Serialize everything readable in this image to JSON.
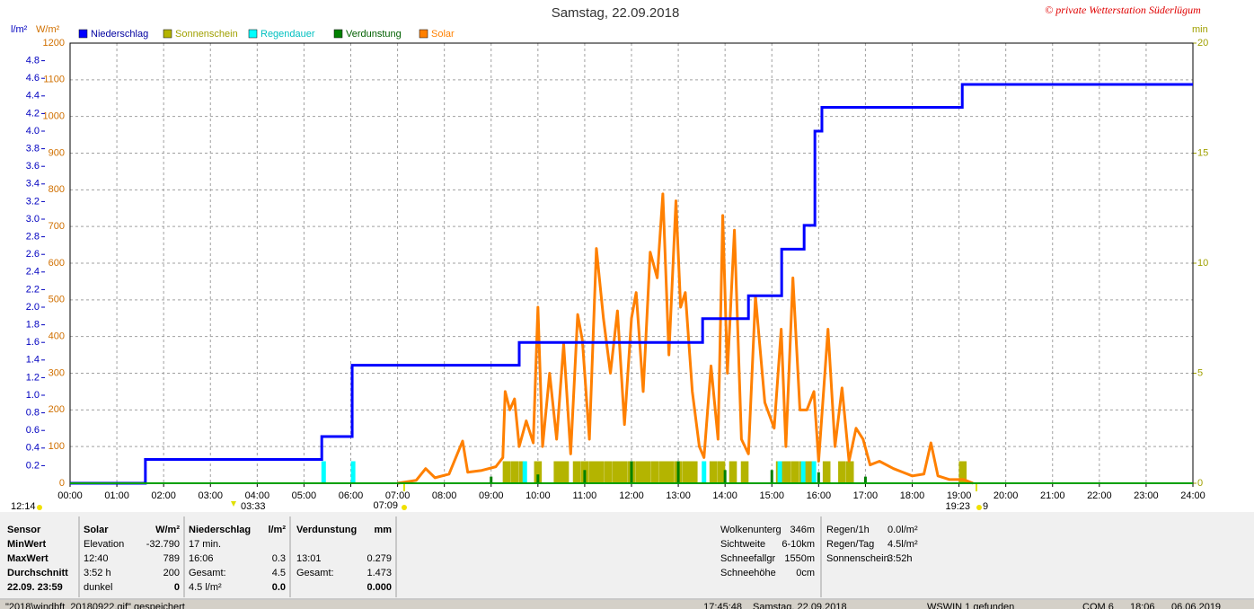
{
  "chart_data": {
    "type": "weather",
    "title": "Samstag, 22.09.2018",
    "copyright": "© private Wetterstation Süderlügum",
    "y_unit": "l/m²",
    "y3_unit": "W/m²",
    "y2_unit": "min",
    "xlim": [
      0,
      24
    ],
    "xticks": [
      {
        "value": 0,
        "label": "00:00"
      },
      {
        "value": 1,
        "label": "01:00"
      },
      {
        "value": 2,
        "label": "02:00"
      },
      {
        "value": 3,
        "label": "03:00"
      },
      {
        "value": 4,
        "label": "04:00"
      },
      {
        "value": 5,
        "label": "05:00"
      },
      {
        "value": 6,
        "label": "06:00"
      },
      {
        "value": 7,
        "label": "07:00"
      },
      {
        "value": 8,
        "label": "08:00"
      },
      {
        "value": 9,
        "label": "09:00"
      },
      {
        "value": 10,
        "label": "10:00"
      },
      {
        "value": 11,
        "label": "11:00"
      },
      {
        "value": 12,
        "label": "12:00"
      },
      {
        "value": 13,
        "label": "13:00"
      },
      {
        "value": 14,
        "label": "14:00"
      },
      {
        "value": 15,
        "label": "15:00"
      },
      {
        "value": 16,
        "label": "16:00"
      },
      {
        "value": 17,
        "label": "17:00"
      },
      {
        "value": 18,
        "label": "18:00"
      },
      {
        "value": 19,
        "label": "19:00"
      },
      {
        "value": 20,
        "label": "20:00"
      },
      {
        "value": 21,
        "label": "21:00"
      },
      {
        "value": 22,
        "label": "22:00"
      },
      {
        "value": 23,
        "label": "23:00"
      },
      {
        "value": 24,
        "label": "24:00"
      }
    ],
    "ylim": [
      0,
      5
    ],
    "yticks": [
      0.2,
      0.4,
      0.6,
      0.8,
      {
        "value": 1,
        "label": "1.0"
      },
      1.2,
      1.4,
      1.6,
      1.8,
      {
        "value": 2,
        "label": "2.0"
      },
      2.2,
      2.4,
      2.6,
      2.8,
      {
        "value": 3,
        "label": "3.0"
      },
      3.2,
      3.4,
      3.6,
      3.8,
      {
        "value": 4,
        "label": "4.0"
      },
      4.2,
      4.4,
      4.6,
      4.8
    ],
    "y3lim": [
      0,
      1200
    ],
    "y3ticks": [
      0,
      100,
      200,
      300,
      400,
      500,
      600,
      700,
      800,
      900,
      1000,
      1100,
      1200
    ],
    "y2lim": [
      0,
      20
    ],
    "y2ticks": [
      0,
      5,
      10,
      15,
      20
    ],
    "grid": true,
    "series": [
      {
        "name": "Niederschlag",
        "color": "#0000ff",
        "kind": "step",
        "axis": "y",
        "x": [
          0,
          1.61,
          5.38,
          6.03,
          9.6,
          13.52,
          14.5,
          15.21,
          15.69,
          15.92,
          16.07,
          19.07
        ],
        "values": [
          0,
          0.27,
          0.53,
          1.34,
          1.6,
          1.87,
          2.13,
          2.66,
          2.93,
          4.0,
          4.27,
          4.53
        ]
      },
      {
        "name": "Sonnenschein",
        "color": "#b4b400",
        "kind": "bar",
        "axis": "y2",
        "x": [
          9.33,
          9.5,
          9.67,
          10.0,
          10.42,
          10.58,
          10.83,
          11.0,
          11.17,
          11.33,
          11.5,
          11.67,
          11.83,
          12.0,
          12.17,
          12.33,
          12.5,
          12.67,
          12.83,
          13.0,
          13.17,
          13.33,
          13.75,
          13.92,
          14.17,
          14.42,
          15.17,
          15.33,
          15.5,
          15.67,
          15.83,
          16.17,
          16.5,
          16.67,
          19.08
        ],
        "values": [
          1,
          1,
          1,
          1,
          1,
          1,
          1,
          1,
          1,
          1,
          1,
          1,
          1,
          1,
          1,
          1,
          1,
          1,
          1,
          1,
          1,
          1,
          1,
          1,
          1,
          1,
          1,
          1,
          1,
          1,
          1,
          1,
          1,
          1,
          1
        ]
      },
      {
        "name": "Regendauer",
        "color": "#00ffff",
        "kind": "bar",
        "axis": "y2",
        "x": [
          5.42,
          6.05,
          9.72,
          13.55,
          15.17,
          15.67,
          15.9
        ],
        "values": [
          1,
          1,
          1,
          1,
          1,
          1,
          1
        ]
      },
      {
        "name": "Verdunstung",
        "color": "#008000",
        "kind": "thinbar",
        "axis": "y2",
        "x": [
          9.0,
          10.0,
          11.0,
          12.0,
          13.0,
          14.0,
          15.0,
          16.0,
          17.0
        ],
        "values": [
          0.3,
          0.4,
          0.6,
          1,
          1,
          0.6,
          0.6,
          0.5,
          0.3
        ]
      },
      {
        "name": "Solar",
        "color": "#ff8000",
        "kind": "line",
        "axis": "y3",
        "x": [
          7.0,
          7.4,
          7.6,
          7.8,
          8.1,
          8.39,
          8.5,
          8.8,
          9.1,
          9.25,
          9.3,
          9.4,
          9.5,
          9.6,
          9.75,
          9.9,
          10.0,
          10.1,
          10.25,
          10.4,
          10.55,
          10.7,
          10.85,
          10.95,
          11.1,
          11.25,
          11.4,
          11.55,
          11.7,
          11.85,
          12.0,
          12.1,
          12.25,
          12.4,
          12.55,
          12.67,
          12.8,
          12.95,
          13.05,
          13.15,
          13.3,
          13.45,
          13.55,
          13.7,
          13.85,
          13.95,
          14.05,
          14.2,
          14.35,
          14.5,
          14.65,
          14.85,
          15.05,
          15.2,
          15.3,
          15.45,
          15.6,
          15.75,
          15.9,
          16.0,
          16.2,
          16.35,
          16.5,
          16.65,
          16.8,
          16.95,
          17.1,
          17.3,
          17.6,
          17.8,
          18.0,
          18.25,
          18.4,
          18.55,
          18.8,
          19.1,
          19.3
        ],
        "values": [
          0,
          8,
          40,
          15,
          25,
          115,
          30,
          35,
          45,
          70,
          250,
          200,
          230,
          100,
          170,
          110,
          480,
          100,
          300,
          120,
          380,
          80,
          460,
          390,
          120,
          640,
          450,
          300,
          470,
          160,
          450,
          520,
          250,
          630,
          560,
          789,
          350,
          770,
          480,
          520,
          250,
          100,
          70,
          320,
          120,
          730,
          300,
          690,
          120,
          80,
          510,
          220,
          150,
          420,
          100,
          560,
          200,
          200,
          250,
          60,
          420,
          100,
          260,
          60,
          150,
          120,
          50,
          60,
          40,
          30,
          20,
          25,
          110,
          20,
          10,
          10,
          0
        ]
      }
    ],
    "annotations": [
      "12:14",
      "03:33",
      "07:09",
      "19:23",
      "9"
    ]
  },
  "info": {
    "labels": [
      "Sensor",
      "MinWert",
      "MaxWert",
      "Durchschnitt",
      "22.09.  23:59"
    ],
    "columns": [
      {
        "header": [
          "Solar",
          "W/m²"
        ],
        "min": [
          "Elevation",
          "-32.790"
        ],
        "max": [
          "12:40",
          "789"
        ],
        "avg": [
          "3:52 h",
          "200"
        ],
        "total": [
          "dunkel",
          "0"
        ]
      },
      {
        "header": [
          "Niederschlag",
          "l/m²"
        ],
        "min": [
          "17 min."
        ],
        "max": [
          "16:06",
          "0.3"
        ],
        "avg": [
          "Gesamt:",
          "4.5"
        ],
        "total": [
          "4.5 l/m²",
          "0.0"
        ]
      },
      {
        "header": [
          "Verdunstung",
          "mm"
        ],
        "max": [
          "13:01",
          "0.279"
        ],
        "avg": [
          "Gesamt:",
          "1.473"
        ],
        "total": [
          "0.000"
        ]
      }
    ],
    "weather": [
      [
        "Wolkenunterg",
        "346m"
      ],
      [
        "Sichtweite",
        "6-10km"
      ],
      [
        "Schneefallgr",
        "1550m"
      ],
      [
        "Schneehöhe",
        "0cm"
      ]
    ],
    "rain": [
      [
        "Regen/1h",
        "0.0l/m²"
      ],
      [
        "Regen/Tag",
        "4.5l/m²"
      ],
      [
        "Sonnenschein",
        "3:52h"
      ]
    ]
  },
  "status_bar": [
    "\"2018\\windbft_20180922.gif\" gespeichert",
    "17:45:48",
    "Samstag, 22.09.2018",
    "WSWIN 1 gefunden",
    "COM 6",
    "18:06",
    "06.06.2019"
  ]
}
